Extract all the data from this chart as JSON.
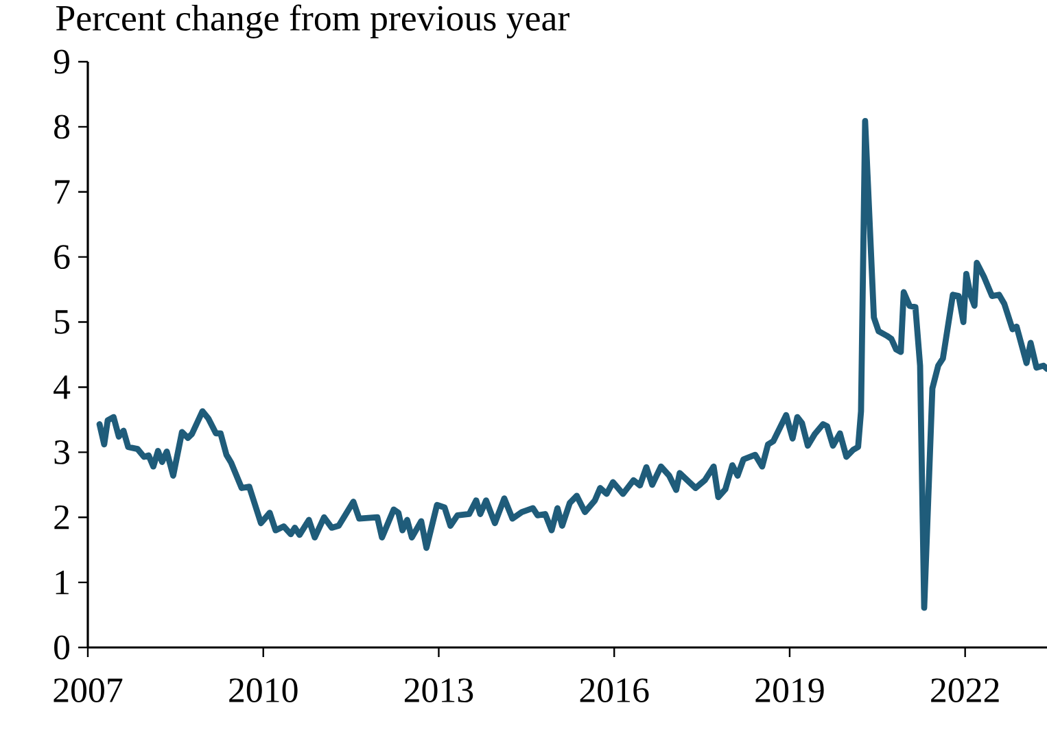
{
  "chart_data": {
    "type": "line",
    "title": "Percent change from previous year",
    "x": [
      2007.2,
      2007.28,
      2007.34,
      2007.44,
      2007.53,
      2007.61,
      2007.69,
      2007.85,
      2007.96,
      2008.04,
      2008.12,
      2008.2,
      2008.27,
      2008.35,
      2008.46,
      2008.61,
      2008.71,
      2008.78,
      2008.96,
      2009.06,
      2009.19,
      2009.27,
      2009.37,
      2009.45,
      2009.63,
      2009.76,
      2009.96,
      2010.11,
      2010.21,
      2010.35,
      2010.47,
      2010.54,
      2010.62,
      2010.78,
      2010.88,
      2011.04,
      2011.17,
      2011.29,
      2011.54,
      2011.64,
      2011.95,
      2012.03,
      2012.23,
      2012.31,
      2012.38,
      2012.46,
      2012.54,
      2012.7,
      2012.79,
      2012.97,
      2013.1,
      2013.2,
      2013.32,
      2013.52,
      2013.64,
      2013.71,
      2013.81,
      2013.96,
      2014.12,
      2014.26,
      2014.42,
      2014.61,
      2014.69,
      2014.82,
      2014.93,
      2015.03,
      2015.11,
      2015.24,
      2015.36,
      2015.5,
      2015.67,
      2015.76,
      2015.87,
      2015.98,
      2016.15,
      2016.33,
      2016.44,
      2016.55,
      2016.65,
      2016.8,
      2016.94,
      2017.06,
      2017.12,
      2017.39,
      2017.55,
      2017.7,
      2017.78,
      2017.9,
      2018.02,
      2018.11,
      2018.21,
      2018.41,
      2018.53,
      2018.63,
      2018.72,
      2018.94,
      2019.05,
      2019.13,
      2019.21,
      2019.31,
      2019.43,
      2019.57,
      2019.64,
      2019.74,
      2019.86,
      2019.97,
      2020.09,
      2020.17,
      2020.22,
      2020.29,
      2020.44,
      2020.52,
      2020.66,
      2020.74,
      2020.82,
      2020.9,
      2020.95,
      2021.05,
      2021.15,
      2021.23,
      2021.3,
      2021.44,
      2021.54,
      2021.62,
      2021.79,
      2021.89,
      2021.97,
      2022.02,
      2022.09,
      2022.16,
      2022.2,
      2022.32,
      2022.46,
      2022.58,
      2022.67,
      2022.81,
      2022.88,
      2023.05,
      2023.12,
      2023.22,
      2023.34,
      2023.4
    ],
    "series": [
      {
        "color": "#1f5c7a",
        "values": [
          3.43,
          3.12,
          3.49,
          3.54,
          3.24,
          3.33,
          3.08,
          3.05,
          2.93,
          2.95,
          2.78,
          3.02,
          2.85,
          3.01,
          2.64,
          3.31,
          3.22,
          3.28,
          3.63,
          3.52,
          3.29,
          3.29,
          2.96,
          2.84,
          2.45,
          2.47,
          1.91,
          2.07,
          1.8,
          1.86,
          1.74,
          1.84,
          1.73,
          1.96,
          1.69,
          2.0,
          1.84,
          1.87,
          2.24,
          1.98,
          2.0,
          1.69,
          2.12,
          2.07,
          1.8,
          1.96,
          1.69,
          1.94,
          1.53,
          2.19,
          2.15,
          1.87,
          2.03,
          2.05,
          2.26,
          2.05,
          2.26,
          1.91,
          2.29,
          1.98,
          2.08,
          2.14,
          2.03,
          2.05,
          1.8,
          2.14,
          1.87,
          2.22,
          2.33,
          2.08,
          2.26,
          2.45,
          2.36,
          2.54,
          2.36,
          2.57,
          2.49,
          2.77,
          2.5,
          2.78,
          2.64,
          2.42,
          2.68,
          2.45,
          2.57,
          2.78,
          2.31,
          2.43,
          2.8,
          2.64,
          2.89,
          2.96,
          2.78,
          3.12,
          3.17,
          3.57,
          3.21,
          3.54,
          3.45,
          3.1,
          3.28,
          3.43,
          3.4,
          3.1,
          3.29,
          2.93,
          3.04,
          3.08,
          3.63,
          8.09,
          5.07,
          4.86,
          4.79,
          4.74,
          4.58,
          4.54,
          5.46,
          5.25,
          5.23,
          4.33,
          0.61,
          3.98,
          4.33,
          4.44,
          5.42,
          5.4,
          5.0,
          5.74,
          5.42,
          5.25,
          5.91,
          5.7,
          5.4,
          5.42,
          5.28,
          4.89,
          4.93,
          4.37,
          4.68,
          4.3,
          4.33,
          4.28
        ]
      }
    ],
    "xlim": [
      2007,
      2023.4
    ],
    "xticks": [
      2007,
      2010,
      2013,
      2016,
      2019,
      2022
    ],
    "ylim": [
      0,
      9
    ],
    "yticks": [
      0,
      1,
      2,
      3,
      4,
      5,
      6,
      7,
      8,
      9
    ],
    "grid": false,
    "line_style": "solid",
    "marker": "none"
  }
}
